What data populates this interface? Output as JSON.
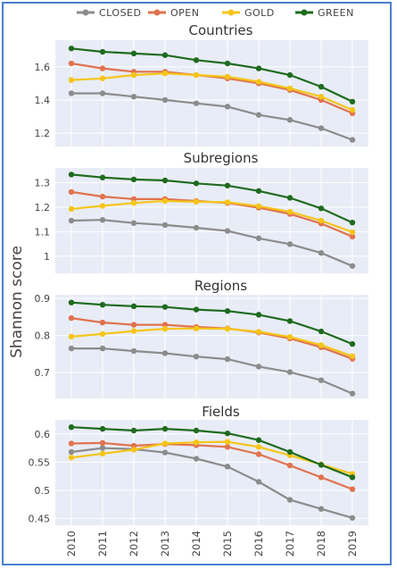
{
  "chart_data": {
    "type": "line",
    "ylabel": "Shannon score",
    "x": [
      2010,
      2011,
      2012,
      2013,
      2014,
      2015,
      2016,
      2017,
      2018,
      2019
    ],
    "legend": {
      "placement": "top",
      "entries": [
        {
          "name": "CLOSED",
          "color": "#8c8c8c"
        },
        {
          "name": "OPEN",
          "color": "#e0734e"
        },
        {
          "name": "GOLD",
          "color": "#f5c518"
        },
        {
          "name": "GREEN",
          "color": "#1f6b1f"
        }
      ]
    },
    "grid": true,
    "panels": [
      {
        "title": "Countries",
        "ylim": [
          1.12,
          1.76
        ],
        "yticks": [
          1.2,
          1.4,
          1.6
        ],
        "ytick_labels": [
          "1.2",
          "1.4",
          "1.6"
        ],
        "series": [
          {
            "name": "CLOSED",
            "values": [
              1.44,
              1.44,
              1.42,
              1.4,
              1.38,
              1.36,
              1.31,
              1.28,
              1.23,
              1.16
            ]
          },
          {
            "name": "OPEN",
            "values": [
              1.62,
              1.59,
              1.57,
              1.57,
              1.55,
              1.53,
              1.5,
              1.46,
              1.4,
              1.32
            ]
          },
          {
            "name": "GOLD",
            "values": [
              1.52,
              1.53,
              1.55,
              1.56,
              1.55,
              1.54,
              1.51,
              1.47,
              1.42,
              1.34
            ]
          },
          {
            "name": "GREEN",
            "values": [
              1.71,
              1.69,
              1.68,
              1.67,
              1.64,
              1.62,
              1.59,
              1.55,
              1.48,
              1.39
            ]
          }
        ]
      },
      {
        "title": "Subregions",
        "ylim": [
          0.93,
          1.36
        ],
        "yticks": [
          1.0,
          1.1,
          1.2,
          1.3
        ],
        "ytick_labels": [
          "1",
          "1.1",
          "1.2",
          "1.3"
        ],
        "series": [
          {
            "name": "CLOSED",
            "values": [
              1.145,
              1.148,
              1.135,
              1.127,
              1.116,
              1.103,
              1.073,
              1.049,
              1.013,
              0.96
            ]
          },
          {
            "name": "OPEN",
            "values": [
              1.262,
              1.243,
              1.233,
              1.233,
              1.225,
              1.217,
              1.198,
              1.172,
              1.133,
              1.08
            ]
          },
          {
            "name": "GOLD",
            "values": [
              1.193,
              1.205,
              1.217,
              1.225,
              1.222,
              1.22,
              1.204,
              1.181,
              1.145,
              1.098
            ]
          },
          {
            "name": "GREEN",
            "values": [
              1.333,
              1.321,
              1.313,
              1.309,
              1.297,
              1.288,
              1.266,
              1.238,
              1.195,
              1.137
            ]
          }
        ]
      },
      {
        "title": "Regions",
        "ylim": [
          0.63,
          0.91
        ],
        "yticks": [
          0.7,
          0.8,
          0.9
        ],
        "ytick_labels": [
          "0.7",
          "0.8",
          "0.9"
        ],
        "series": [
          {
            "name": "CLOSED",
            "values": [
              0.765,
              0.765,
              0.758,
              0.752,
              0.743,
              0.736,
              0.716,
              0.701,
              0.679,
              0.643
            ]
          },
          {
            "name": "OPEN",
            "values": [
              0.847,
              0.835,
              0.829,
              0.829,
              0.823,
              0.819,
              0.808,
              0.792,
              0.768,
              0.737
            ]
          },
          {
            "name": "GOLD",
            "values": [
              0.797,
              0.804,
              0.812,
              0.818,
              0.819,
              0.818,
              0.81,
              0.796,
              0.774,
              0.744
            ]
          },
          {
            "name": "GREEN",
            "values": [
              0.889,
              0.883,
              0.879,
              0.877,
              0.87,
              0.866,
              0.856,
              0.839,
              0.811,
              0.777
            ]
          }
        ]
      },
      {
        "title": "Fields",
        "ylim": [
          0.438,
          0.625
        ],
        "yticks": [
          0.45,
          0.5,
          0.55,
          0.6
        ],
        "ytick_labels": [
          "0.45",
          "0.5",
          "0.55",
          "0.6"
        ],
        "series": [
          {
            "name": "CLOSED",
            "values": [
              0.568,
              0.575,
              0.573,
              0.567,
              0.556,
              0.542,
              0.515,
              0.483,
              0.467,
              0.451
            ]
          },
          {
            "name": "OPEN",
            "values": [
              0.583,
              0.584,
              0.579,
              0.582,
              0.58,
              0.577,
              0.564,
              0.544,
              0.523,
              0.502
            ]
          },
          {
            "name": "GOLD",
            "values": [
              0.558,
              0.565,
              0.572,
              0.583,
              0.585,
              0.586,
              0.577,
              0.562,
              0.546,
              0.529
            ]
          },
          {
            "name": "GREEN",
            "values": [
              0.612,
              0.609,
              0.606,
              0.609,
              0.606,
              0.601,
              0.589,
              0.568,
              0.545,
              0.523
            ]
          }
        ]
      }
    ]
  }
}
